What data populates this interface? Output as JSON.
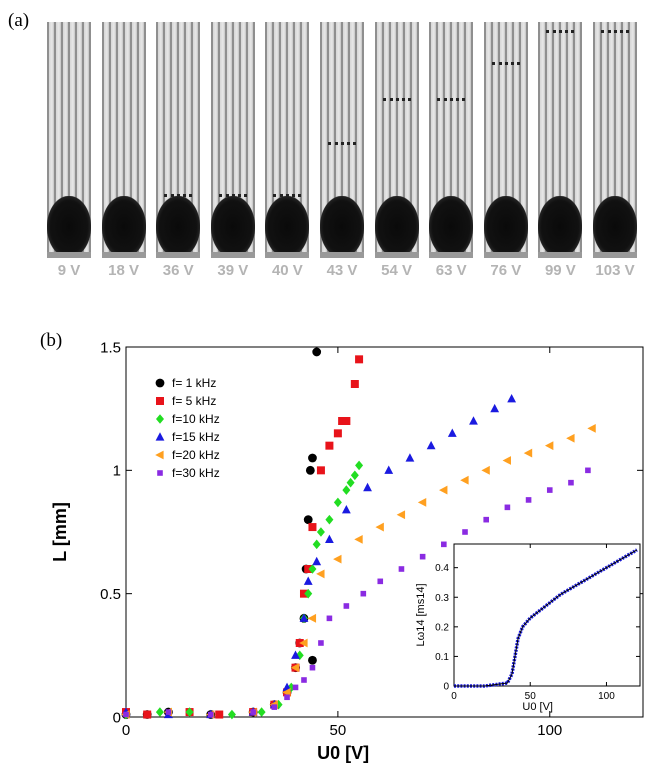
{
  "panel_a": {
    "label": "(a)",
    "frames": [
      {
        "voltage": "9 V",
        "streamer": "none"
      },
      {
        "voltage": "18 V",
        "streamer": "none"
      },
      {
        "voltage": "36 V",
        "streamer": "low"
      },
      {
        "voltage": "39 V",
        "streamer": "low"
      },
      {
        "voltage": "40 V",
        "streamer": "low"
      },
      {
        "voltage": "43 V",
        "streamer": "mid"
      },
      {
        "voltage": "54 V",
        "streamer": "high"
      },
      {
        "voltage": "63 V",
        "streamer": "high"
      },
      {
        "voltage": "76 V",
        "streamer": "higher"
      },
      {
        "voltage": "99 V",
        "streamer": "top"
      },
      {
        "voltage": "103 V",
        "streamer": "top"
      }
    ]
  },
  "panel_b": {
    "label": "(b)"
  },
  "chart_data": [
    {
      "type": "scatter",
      "title": "",
      "xlabel": "U0 [V]",
      "ylabel": "L [mm]",
      "xlim": [
        0,
        122
      ],
      "ylim": [
        0,
        1.5
      ],
      "xticks": [
        0,
        50,
        100
      ],
      "yticks": [
        0,
        0.5,
        1,
        1.5
      ],
      "ytick_labels": [
        "0",
        "0.5",
        "1",
        "1.5"
      ],
      "legend_position": "top-left",
      "series": [
        {
          "name": "f=  1 kHz",
          "color": "#000000",
          "marker": "circle",
          "x": [
            0,
            5,
            10,
            20,
            30,
            35,
            38,
            40,
            41,
            42,
            42.5,
            43,
            43.5,
            44,
            44,
            45
          ],
          "y": [
            0.01,
            0.01,
            0.02,
            0.01,
            0.02,
            0.05,
            0.1,
            0.2,
            0.3,
            0.4,
            0.6,
            0.8,
            1.0,
            1.05,
            0.23,
            1.48
          ]
        },
        {
          "name": "f=  5 kHz",
          "color": "#e8131a",
          "marker": "square",
          "x": [
            0,
            5,
            15,
            22,
            30,
            35,
            38,
            40,
            41,
            42,
            43,
            44,
            46,
            48,
            50,
            51,
            52,
            54,
            55
          ],
          "y": [
            0.02,
            0.01,
            0.02,
            0.01,
            0.02,
            0.05,
            0.1,
            0.2,
            0.3,
            0.5,
            0.6,
            0.77,
            1.0,
            1.1,
            1.15,
            1.2,
            1.2,
            1.35,
            1.45
          ]
        },
        {
          "name": "f=10 kHz",
          "color": "#22dd22",
          "marker": "diamond",
          "x": [
            0,
            8,
            15,
            25,
            32,
            36,
            39,
            41,
            42,
            43,
            44,
            45,
            46,
            48,
            50,
            52,
            53,
            54,
            55
          ],
          "y": [
            0.01,
            0.02,
            0.02,
            0.01,
            0.02,
            0.05,
            0.12,
            0.25,
            0.4,
            0.5,
            0.6,
            0.7,
            0.75,
            0.8,
            0.87,
            0.92,
            0.95,
            0.98,
            1.02
          ]
        },
        {
          "name": "f=15 kHz",
          "color": "#1a1ae0",
          "marker": "triangle",
          "x": [
            0,
            10,
            20,
            30,
            35,
            38,
            40,
            42,
            43,
            45,
            48,
            52,
            57,
            62,
            67,
            72,
            77,
            82,
            87,
            91
          ],
          "y": [
            0.02,
            0.01,
            0.01,
            0.02,
            0.05,
            0.12,
            0.25,
            0.4,
            0.55,
            0.63,
            0.72,
            0.84,
            0.93,
            1.0,
            1.05,
            1.1,
            1.15,
            1.2,
            1.25,
            1.29
          ]
        },
        {
          "name": "f=20 kHz",
          "color": "#ffa020",
          "marker": "left-triangle",
          "x": [
            0,
            10,
            20,
            30,
            35,
            38,
            40,
            42,
            44,
            46,
            50,
            55,
            60,
            65,
            70,
            75,
            80,
            85,
            90,
            95,
            100,
            105,
            110
          ],
          "y": [
            0.01,
            0.02,
            0.01,
            0.02,
            0.05,
            0.1,
            0.2,
            0.3,
            0.4,
            0.58,
            0.64,
            0.72,
            0.77,
            0.82,
            0.87,
            0.92,
            0.96,
            1.0,
            1.04,
            1.07,
            1.1,
            1.13,
            1.17
          ]
        },
        {
          "name": "f=30 kHz",
          "color": "#8a2be2",
          "marker": "square-small",
          "x": [
            0,
            10,
            20,
            30,
            35,
            38,
            40,
            42,
            44,
            46,
            48,
            52,
            56,
            60,
            65,
            70,
            75,
            80,
            85,
            90,
            95,
            100,
            105,
            109
          ],
          "y": [
            0.01,
            0.02,
            0.01,
            0.02,
            0.04,
            0.08,
            0.12,
            0.15,
            0.2,
            0.3,
            0.4,
            0.45,
            0.5,
            0.55,
            0.6,
            0.65,
            0.7,
            0.75,
            0.8,
            0.85,
            0.88,
            0.92,
            0.95,
            1.0
          ]
        }
      ]
    },
    {
      "type": "scatter",
      "title": "",
      "xlabel": "U0 [V]",
      "ylabel": "Lω14 [ms14]",
      "xlim": [
        0,
        122
      ],
      "ylim": [
        0,
        0.48
      ],
      "xticks": [
        0,
        50,
        100
      ],
      "yticks": [
        0,
        0.1,
        0.2,
        0.3,
        0.4
      ],
      "ytick_labels": [
        "0",
        "0.1",
        "0.2",
        "0.3",
        "0.4"
      ],
      "curve": {
        "x": [
          0,
          20,
          35,
          38,
          40,
          42,
          45,
          50,
          60,
          70,
          80,
          90,
          100,
          110,
          120
        ],
        "y": [
          0.0,
          0.0,
          0.01,
          0.04,
          0.1,
          0.16,
          0.2,
          0.23,
          0.27,
          0.31,
          0.34,
          0.37,
          0.4,
          0.43,
          0.46
        ]
      }
    }
  ]
}
